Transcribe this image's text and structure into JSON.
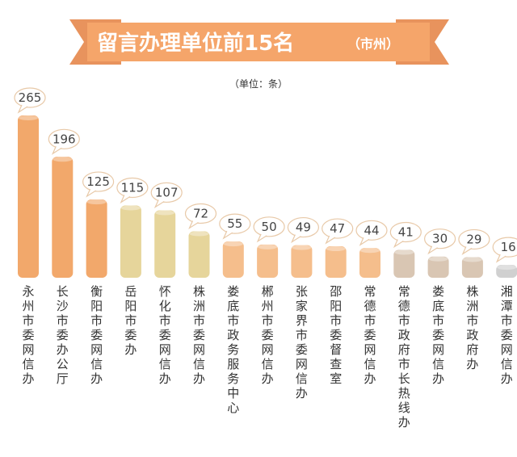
{
  "chart_data": {
    "type": "bar",
    "title": "留言办理单位前15名",
    "subtitle": "（市州）",
    "unit_label": "（单位：条）",
    "categories": [
      "永州市委网信办",
      "长沙市委办公厅",
      "衡阳市委网信办",
      "岳阳市委办",
      "怀化市委网信办",
      "株洲市委网信办",
      "娄底市政务服务中心",
      "郴州市委网信办",
      "张家界市委网信办",
      "邵阳市委督查室",
      "常德市委网信办",
      "常德市政府市长热线办",
      "娄底市委网信办",
      "株洲市政府办",
      "湘潭市委网信办"
    ],
    "values": [
      265,
      196,
      125,
      115,
      107,
      72,
      55,
      50,
      49,
      47,
      44,
      41,
      30,
      29,
      16
    ],
    "ylim": [
      0,
      265
    ],
    "grid": false,
    "legend": "none",
    "colors": {
      "banner": "#f5a56a",
      "banner_dark": "#e0824a",
      "ribbon_edge": "#e8935d",
      "bubble_stroke": "#e8c9a8",
      "bar_colors": [
        "#f2a86b",
        "#f2a86b",
        "#f2a86b",
        "#e6d59b",
        "#e6d59b",
        "#e6d59b",
        "#f5be8c",
        "#f5be8c",
        "#f5be8c",
        "#f5be8c",
        "#f5be8c",
        "#d9c6b3",
        "#d9c6b3",
        "#d9c6b3",
        "#d0d0d0"
      ]
    }
  }
}
